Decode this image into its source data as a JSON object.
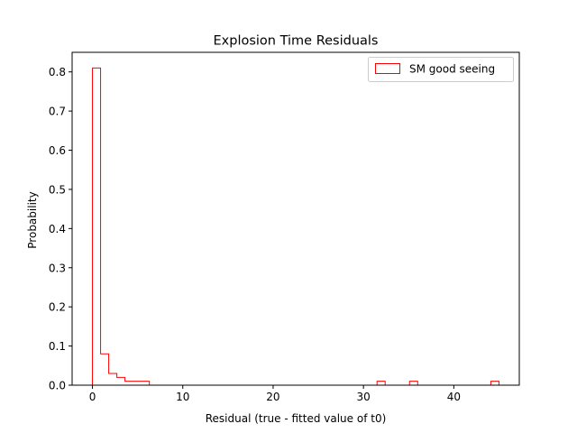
{
  "chart_data": {
    "type": "histogram",
    "title": "Explosion Time Residuals",
    "xlabel": "Residual (true - fitted value of t0)",
    "ylabel": "Probability",
    "xlim": [
      -2.25,
      47.25
    ],
    "ylim": [
      0,
      0.85
    ],
    "xticks": [
      0,
      10,
      20,
      30,
      40
    ],
    "yticks": [
      0.0,
      0.1,
      0.2,
      0.3,
      0.4,
      0.5,
      0.6,
      0.7,
      0.8
    ],
    "ytick_labels": [
      "0.0",
      "0.1",
      "0.2",
      "0.3",
      "0.4",
      "0.5",
      "0.6",
      "0.7",
      "0.8"
    ],
    "grid": false,
    "legend_position": "top-right",
    "series": [
      {
        "name": "SM good seeing",
        "color": "#ff0000",
        "histtype": "step",
        "bin_edges": [
          0,
          0.9,
          1.8,
          2.7,
          3.6,
          4.5,
          5.4,
          6.3,
          31.5,
          32.4,
          35.1,
          36.0,
          44.1,
          45.0
        ],
        "values": [
          0.81,
          0.08,
          0.03,
          0.02,
          0.01,
          0.01,
          0.01,
          0.0,
          0.01,
          0.0,
          0.01,
          0.0,
          0.01
        ]
      }
    ]
  }
}
